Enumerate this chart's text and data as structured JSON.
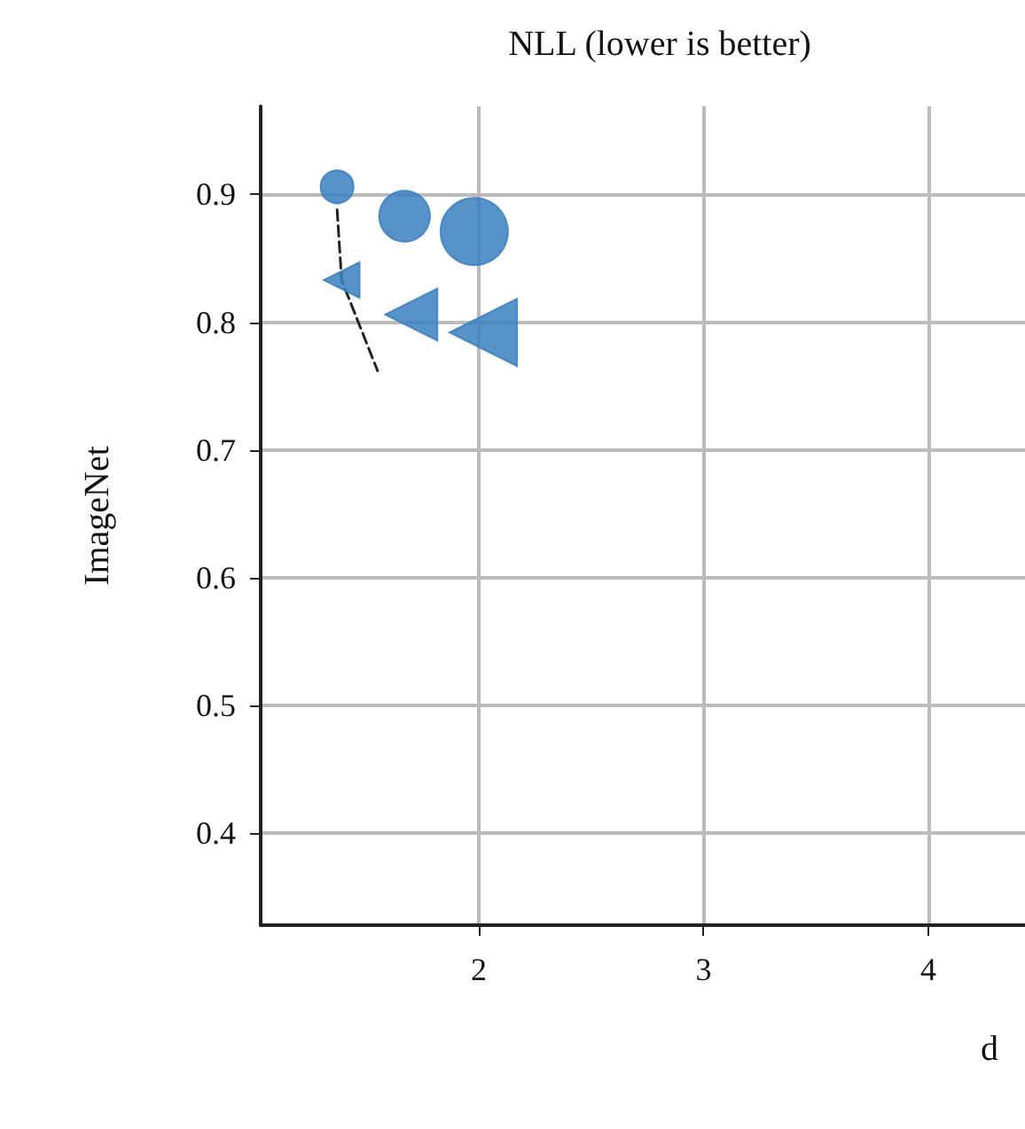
{
  "chart_data": {
    "type": "bubble",
    "title": "NLL (lower is better)",
    "xlabel": "d",
    "ylabel": "ImageNet",
    "xlim": [
      1.03,
      4.43
    ],
    "xticks": [
      2,
      3,
      4
    ],
    "ylim": [
      0.328,
      0.969
    ],
    "yticks": [
      0.4,
      0.5,
      0.6,
      0.7,
      0.8,
      0.9
    ],
    "grid": true,
    "series": [
      {
        "type": "line",
        "color": "#222222",
        "line_style": "dashed",
        "marker": "none",
        "x": [
          1.37,
          1.39,
          1.55
        ],
        "values": [
          0.888,
          0.833,
          0.762
        ]
      },
      {
        "color": "#3a80c0",
        "marker": "circle",
        "x": [
          1.37,
          1.67,
          1.98
        ],
        "values": [
          0.906,
          0.883,
          0.871
        ],
        "sizes": [
          0.24,
          0.57,
          1
        ]
      },
      {
        "color": "#3a80c0",
        "marker": "triangle",
        "x": [
          1.39,
          1.7,
          2.02
        ],
        "values": [
          0.833,
          0.806,
          0.792
        ],
        "sizes": [
          0.18,
          0.38,
          0.64
        ]
      }
    ]
  }
}
